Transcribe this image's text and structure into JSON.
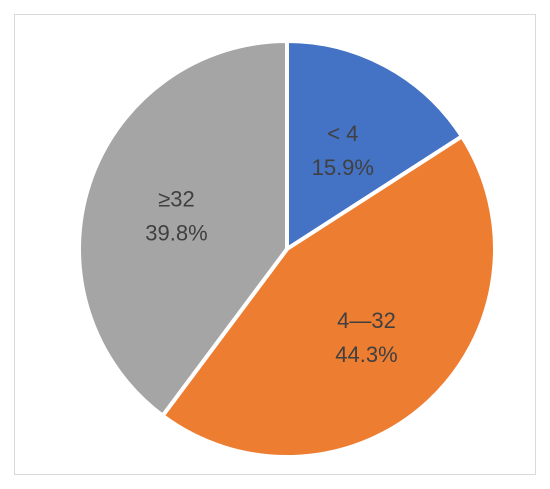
{
  "chart_data": {
    "type": "pie",
    "title": "",
    "start_angle_deg": 0,
    "direction": "clockwise",
    "slices": [
      {
        "category": "< 4",
        "percent_label": "15.9%",
        "value": 15.9,
        "color": "#4472c4"
      },
      {
        "category": "4—32",
        "percent_label": "44.3%",
        "value": 44.3,
        "color": "#ed7d31"
      },
      {
        "category": "≥32",
        "percent_label": "39.8%",
        "value": 39.8,
        "color": "#a5a5a5"
      }
    ],
    "legend": "none",
    "slice_border_color": "#ffffff"
  }
}
